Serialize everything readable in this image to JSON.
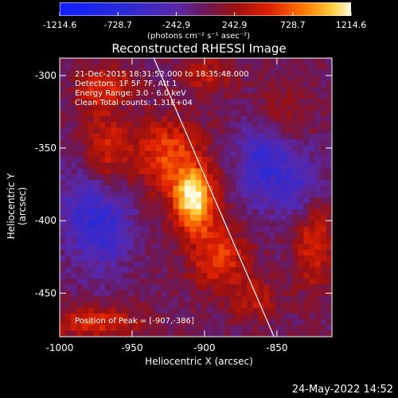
{
  "title": "Reconstructed RHESSI Image",
  "colorbar": {
    "ticks": [
      "-1214.6",
      "-728.7",
      "-242.9",
      "242.9",
      "728.7",
      "1214.6"
    ],
    "tick_values": [
      -1214.6,
      -728.7,
      -242.9,
      242.9,
      728.7,
      1214.6
    ],
    "range": [
      -1214.6,
      1214.6
    ],
    "label": "(photons cm⁻² s⁻¹ asec⁻²)"
  },
  "info": {
    "time_range": "21-Dec-2015 18:31:52.000 to 18:35:48.000",
    "detectors": "Detectors: 1F 5F 7F, Att 1",
    "energy": "Energy Range: 3.0 - 6.0 keV",
    "method": "Clean     Total counts: 1.31E+04",
    "peak": "Position of Peak = [-907,-386]"
  },
  "timestamp": "24-May-2022 14:52",
  "chart_data": {
    "type": "heatmap",
    "title": "Reconstructed RHESSI Image",
    "xlabel": "Heliocentric X (arcsec)",
    "ylabel": "Heliocentric Y (arcsec)",
    "xlim": [
      -1000,
      -812
    ],
    "ylim": [
      -480,
      -288
    ],
    "xticks": [
      -1000,
      -950,
      -900,
      -850
    ],
    "yticks": [
      -300,
      -350,
      -400,
      -450
    ],
    "xtick_labels": [
      "-1000",
      "-950",
      "-900",
      "-850"
    ],
    "ytick_labels": [
      "-300",
      "-350",
      "-400",
      "-450"
    ],
    "value_range": [
      -1214.6,
      1214.6
    ],
    "peak": {
      "x": -907,
      "y": -386,
      "value": 1214.6
    },
    "limb_line": [
      {
        "x": -935,
        "y": -288
      },
      {
        "x": -852,
        "y": -480
      }
    ],
    "sources": [
      {
        "x": -907,
        "y": -386,
        "amp": 1200,
        "sx": 10,
        "sy": 15
      },
      {
        "x": -925,
        "y": -355,
        "amp": 650,
        "sx": 16,
        "sy": 18
      },
      {
        "x": -890,
        "y": -425,
        "amp": 600,
        "sx": 14,
        "sy": 16
      },
      {
        "x": -968,
        "y": -350,
        "amp": 480,
        "sx": 12,
        "sy": 18
      },
      {
        "x": -975,
        "y": -310,
        "amp": 430,
        "sx": 10,
        "sy": 10
      },
      {
        "x": -958,
        "y": -305,
        "amp": 300,
        "sx": 10,
        "sy": 8
      },
      {
        "x": -898,
        "y": -300,
        "amp": 380,
        "sx": 12,
        "sy": 10
      },
      {
        "x": -975,
        "y": -470,
        "amp": 520,
        "sx": 22,
        "sy": 8
      },
      {
        "x": -825,
        "y": -415,
        "amp": 520,
        "sx": 9,
        "sy": 22
      },
      {
        "x": -865,
        "y": -455,
        "amp": 350,
        "sx": 12,
        "sy": 10
      },
      {
        "x": -845,
        "y": -325,
        "amp": 250,
        "sx": 14,
        "sy": 14
      },
      {
        "x": -860,
        "y": -360,
        "amp": -560,
        "sx": 12,
        "sy": 20
      },
      {
        "x": -968,
        "y": -405,
        "amp": -520,
        "sx": 13,
        "sy": 20
      },
      {
        "x": -835,
        "y": -375,
        "amp": -420,
        "sx": 12,
        "sy": 18
      },
      {
        "x": -985,
        "y": -390,
        "amp": -320,
        "sx": 12,
        "sy": 25
      }
    ]
  }
}
